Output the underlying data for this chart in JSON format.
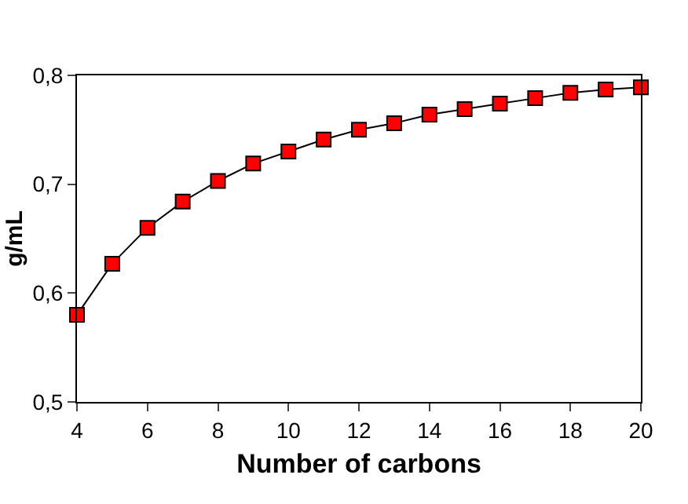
{
  "chart_data": {
    "type": "line",
    "xlabel": "Number of carbons",
    "ylabel": "g/mL",
    "x": [
      4,
      5,
      6,
      7,
      8,
      9,
      10,
      11,
      12,
      13,
      14,
      15,
      16,
      17,
      18,
      19,
      20
    ],
    "series": [
      {
        "color": "#ff0000",
        "values": [
          0.58,
          0.627,
          0.66,
          0.684,
          0.703,
          0.719,
          0.73,
          0.741,
          0.75,
          0.756,
          0.764,
          0.769,
          0.774,
          0.779,
          0.784,
          0.787,
          0.789
        ]
      }
    ],
    "xlim": [
      4,
      20
    ],
    "xticks": [
      4,
      6,
      8,
      10,
      12,
      14,
      16,
      18,
      20
    ],
    "ylim": [
      0.5,
      0.8
    ],
    "yticks": [
      {
        "value": 0.5,
        "label": "0,5"
      },
      {
        "value": 0.6,
        "label": "0,6"
      },
      {
        "value": 0.7,
        "label": "0,7"
      },
      {
        "value": 0.8,
        "label": "0,8"
      }
    ],
    "marker": "square",
    "line_style": "solid"
  }
}
